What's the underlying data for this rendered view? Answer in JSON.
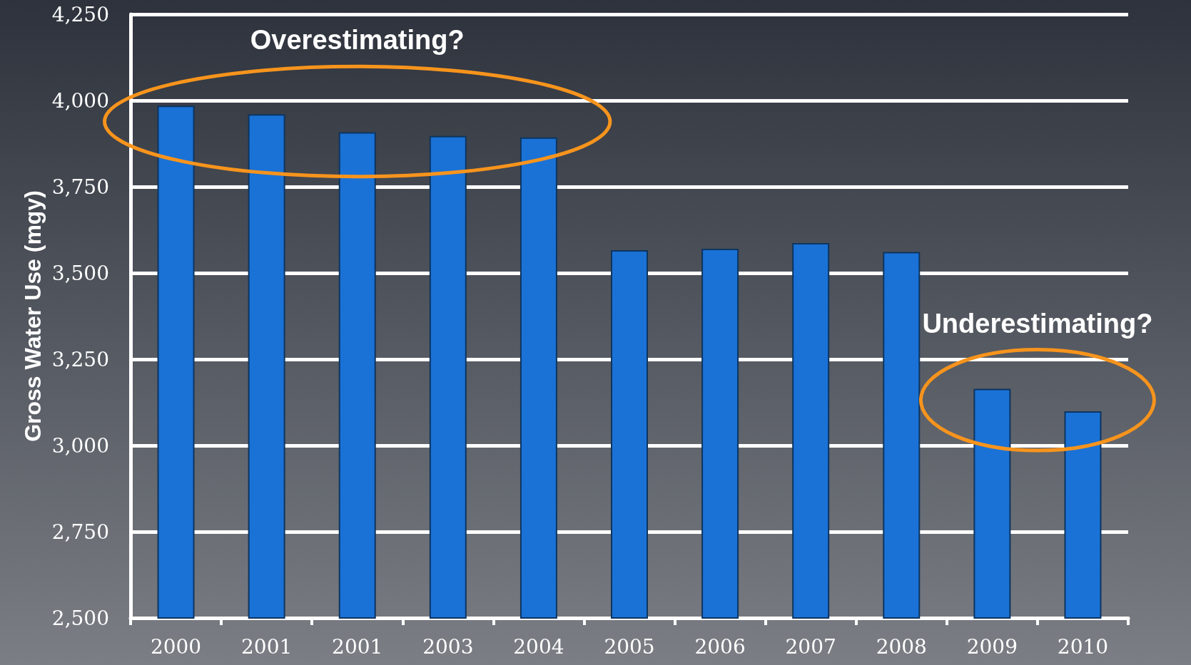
{
  "chart_data": {
    "type": "bar",
    "ylabel": "Gross Water Use (mgy)",
    "categories": [
      "2000",
      "2001",
      "2001",
      "2003",
      "2004",
      "2005",
      "2006",
      "2007",
      "2008",
      "2009",
      "2010"
    ],
    "values": [
      3985,
      3960,
      3908,
      3897,
      3893,
      3566,
      3570,
      3587,
      3561,
      3164,
      3099
    ],
    "color": "#1a72d6",
    "ylim": [
      2500,
      4250
    ],
    "yticks": [
      {
        "value": 2500,
        "label": "2,500"
      },
      {
        "value": 2750,
        "label": "2,750"
      },
      {
        "value": 3000,
        "label": "3,000"
      },
      {
        "value": 3250,
        "label": "3,250"
      },
      {
        "value": 3500,
        "label": "3,500"
      },
      {
        "value": 3750,
        "label": "3,750"
      },
      {
        "value": 4000,
        "label": "4,000"
      },
      {
        "value": 4250,
        "label": "4,250"
      }
    ],
    "grid": "y",
    "annotations": [
      "Overestimating?",
      "Underestimating?"
    ]
  }
}
